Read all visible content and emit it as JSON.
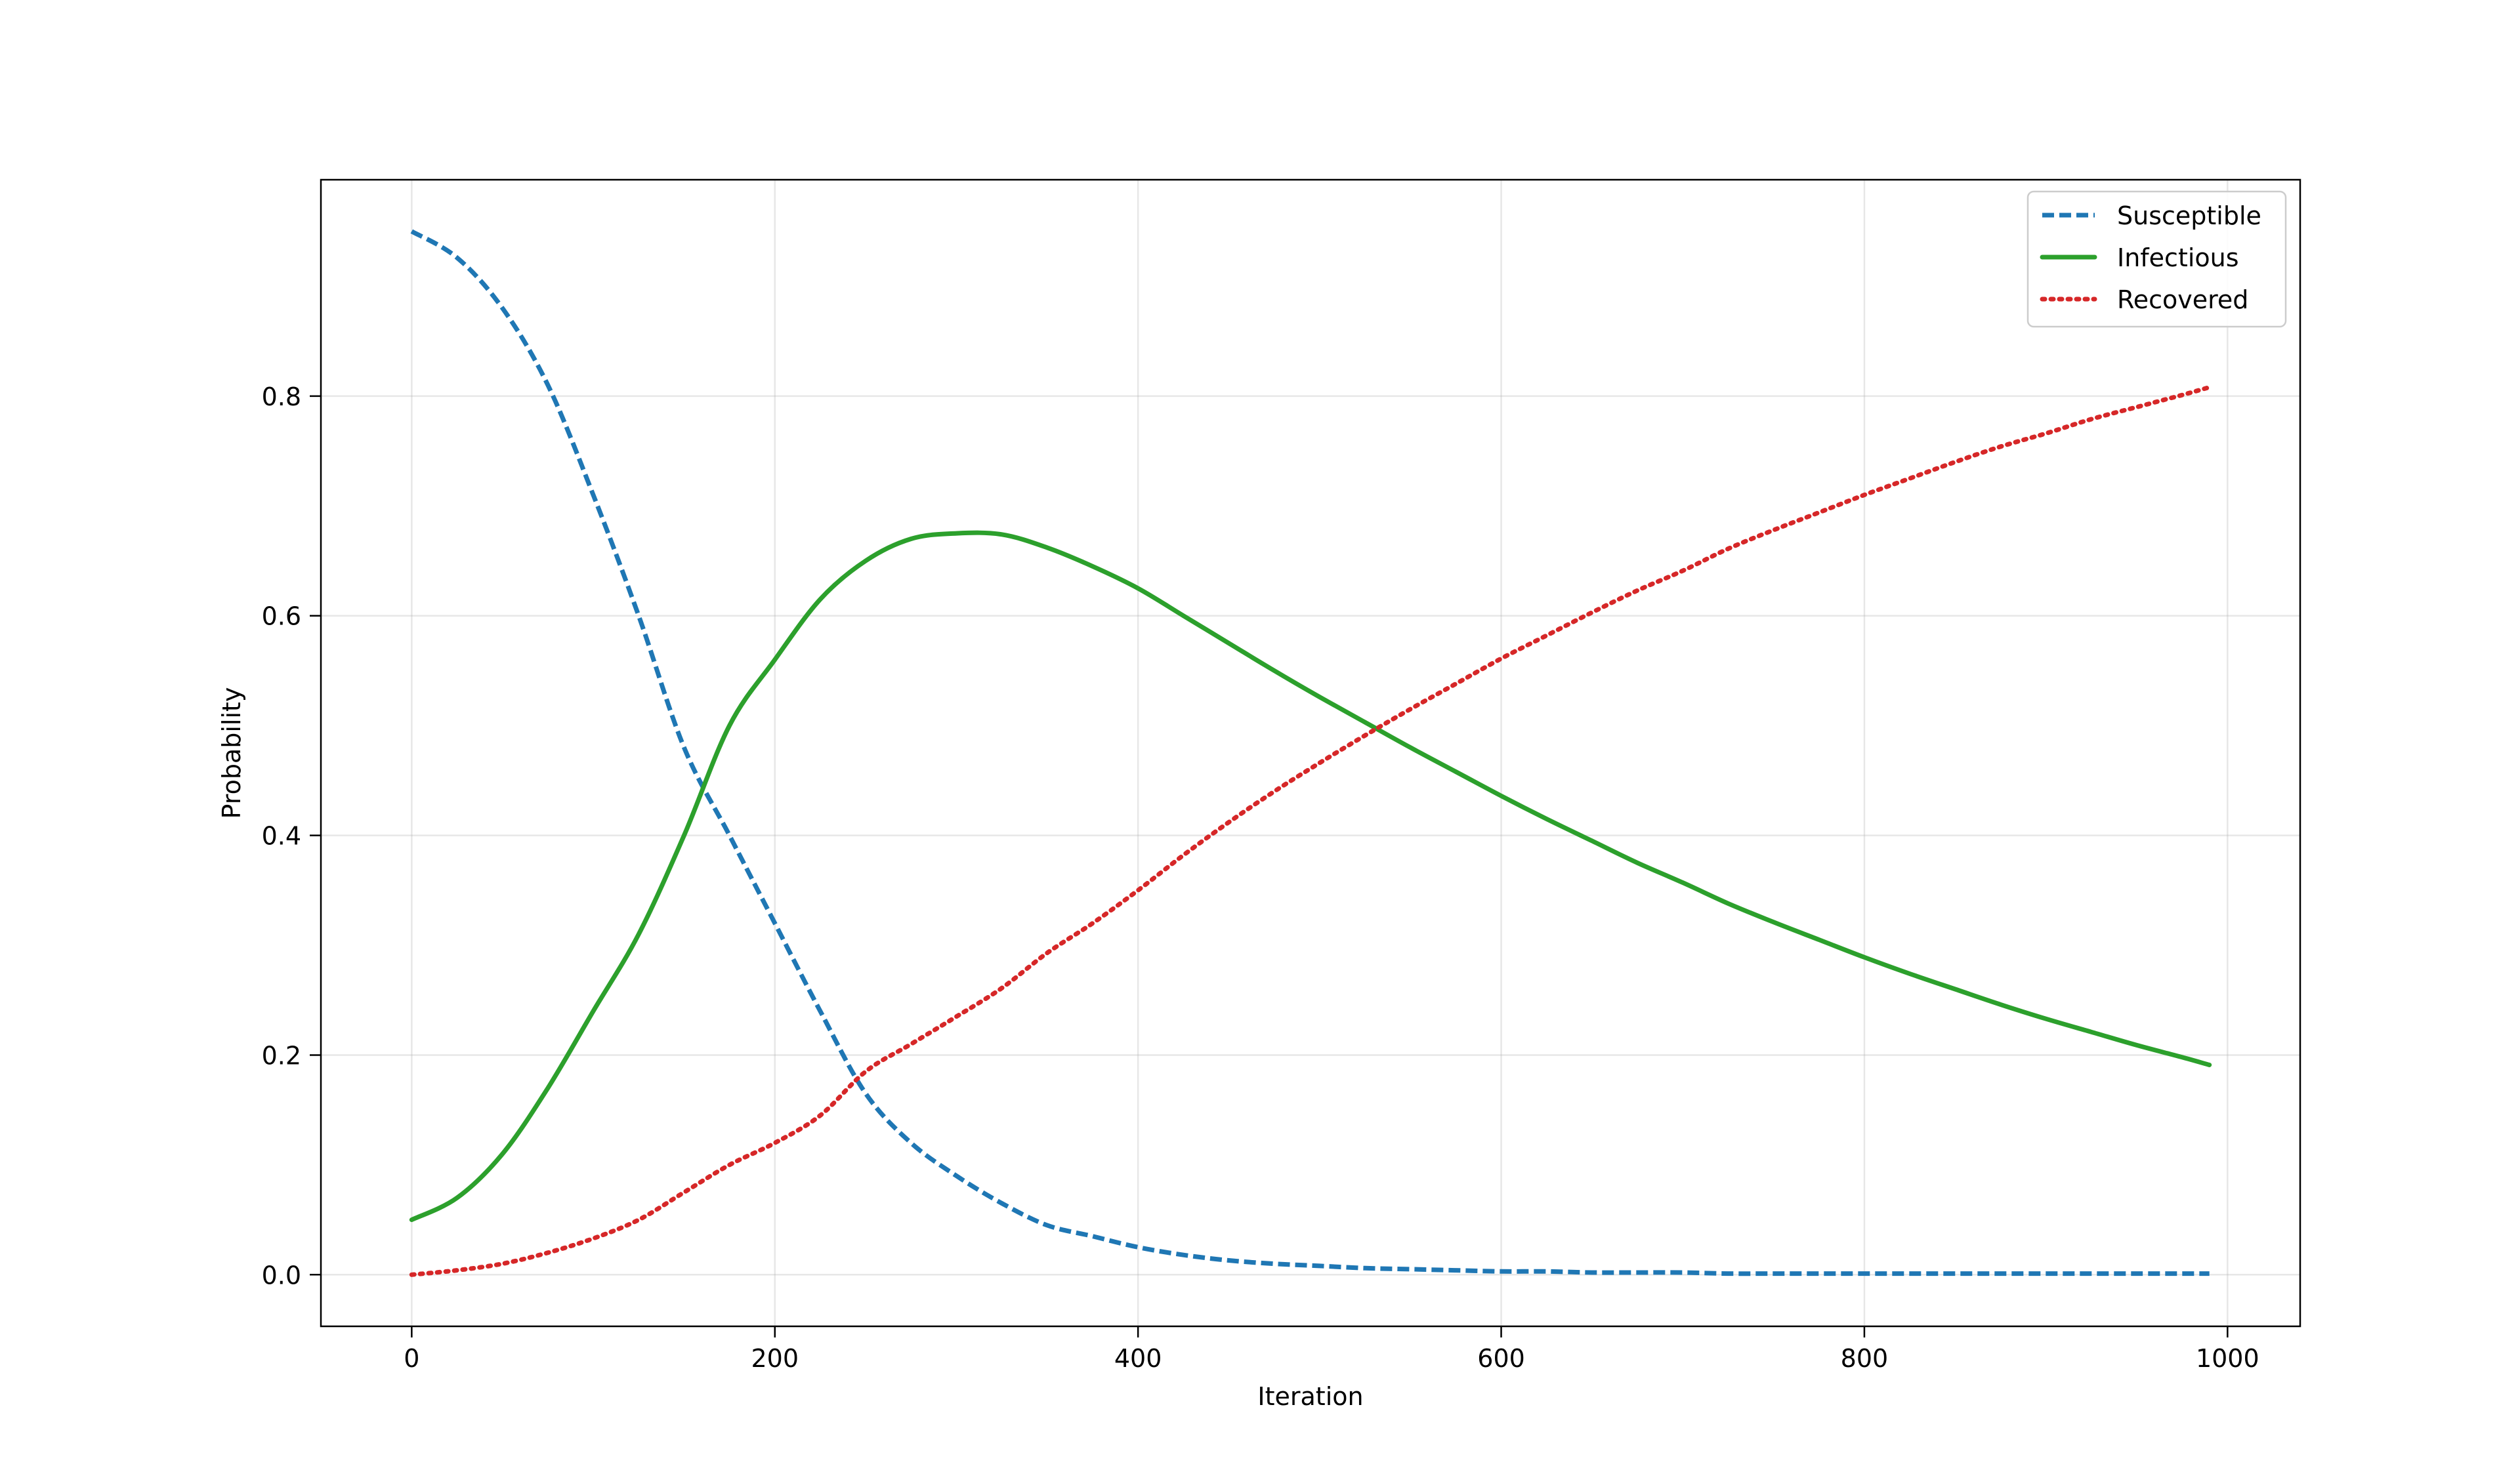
{
  "chart_data": {
    "type": "line",
    "title": "",
    "xlabel": "Iteration",
    "ylabel": "Probability",
    "xlim": [
      -50,
      1040
    ],
    "ylim": [
      -0.047,
      0.997
    ],
    "xticks": [
      0,
      200,
      400,
      600,
      800,
      1000
    ],
    "yticks": [
      0.0,
      0.2,
      0.4,
      0.6,
      0.8
    ],
    "xtick_labels": [
      "0",
      "200",
      "400",
      "600",
      "800",
      "1000"
    ],
    "ytick_labels": [
      "0.0",
      "0.2",
      "0.4",
      "0.6",
      "0.8"
    ],
    "grid": true,
    "legend_position": "top-right",
    "x": [
      0,
      25,
      50,
      75,
      100,
      125,
      150,
      175,
      200,
      225,
      250,
      275,
      300,
      325,
      350,
      375,
      400,
      425,
      450,
      475,
      500,
      525,
      550,
      575,
      600,
      625,
      650,
      675,
      700,
      725,
      750,
      775,
      800,
      825,
      850,
      875,
      900,
      925,
      950,
      975,
      990
    ],
    "series": [
      {
        "name": "Susceptible",
        "color": "#1f77b4",
        "style": "dashed",
        "values": [
          0.95,
          0.926,
          0.88,
          0.81,
          0.71,
          0.6,
          0.48,
          0.4,
          0.32,
          0.24,
          0.165,
          0.12,
          0.09,
          0.065,
          0.045,
          0.035,
          0.025,
          0.018,
          0.013,
          0.01,
          0.008,
          0.006,
          0.005,
          0.004,
          0.003,
          0.003,
          0.002,
          0.002,
          0.002,
          0.001,
          0.001,
          0.001,
          0.001,
          0.001,
          0.001,
          0.001,
          0.001,
          0.001,
          0.001,
          0.001,
          0.001
        ]
      },
      {
        "name": "Infectious",
        "color": "#2ca02c",
        "style": "solid",
        "values": [
          0.05,
          0.07,
          0.11,
          0.17,
          0.24,
          0.31,
          0.4,
          0.5,
          0.56,
          0.615,
          0.65,
          0.67,
          0.675,
          0.674,
          0.662,
          0.645,
          0.625,
          0.6,
          0.575,
          0.55,
          0.526,
          0.503,
          0.48,
          0.458,
          0.436,
          0.415,
          0.395,
          0.375,
          0.357,
          0.338,
          0.321,
          0.305,
          0.289,
          0.274,
          0.26,
          0.246,
          0.233,
          0.221,
          0.209,
          0.198,
          0.191
        ]
      },
      {
        "name": "Recovered",
        "color": "#d62728",
        "style": "dotted",
        "values": [
          0.0,
          0.004,
          0.01,
          0.02,
          0.033,
          0.05,
          0.075,
          0.1,
          0.12,
          0.145,
          0.185,
          0.21,
          0.235,
          0.261,
          0.293,
          0.32,
          0.35,
          0.382,
          0.412,
          0.44,
          0.466,
          0.491,
          0.515,
          0.538,
          0.561,
          0.582,
          0.603,
          0.623,
          0.641,
          0.661,
          0.678,
          0.694,
          0.71,
          0.725,
          0.74,
          0.754,
          0.766,
          0.779,
          0.79,
          0.801,
          0.808
        ]
      }
    ]
  }
}
